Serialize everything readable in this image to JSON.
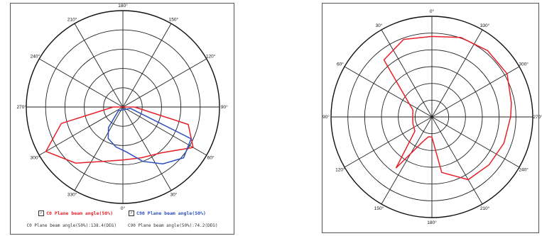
{
  "charts": {
    "left": {
      "angle_labels": [
        {
          "text": "180°",
          "angle": 0
        },
        {
          "text": "150°",
          "angle": 30
        },
        {
          "text": "120°",
          "angle": 60
        },
        {
          "text": "90°",
          "angle": 90
        },
        {
          "text": "60°",
          "angle": 120
        },
        {
          "text": "30°",
          "angle": 150
        },
        {
          "text": "0°",
          "angle": 180
        },
        {
          "text": "330°",
          "angle": 210
        },
        {
          "text": "300°",
          "angle": 240
        },
        {
          "text": "270°",
          "angle": 270
        },
        {
          "text": "240°",
          "angle": 300
        },
        {
          "text": "210°",
          "angle": 330
        }
      ],
      "legend": [
        {
          "label": "C0 Plane beam angle(50%)",
          "color": "#e8202a"
        },
        {
          "label": "C90 Plane beam angle(50%)",
          "color": "#2b4fc0"
        }
      ],
      "beam_text": [
        "C0 Plane beam angle(50%):138.4(DEG)",
        "C90 Plane beam angle(50%):74.2(DEG)"
      ]
    },
    "right": {
      "angle_labels": [
        {
          "text": "0°",
          "angle": 0
        },
        {
          "text": "330°",
          "angle": 30
        },
        {
          "text": "300°",
          "angle": 60
        },
        {
          "text": "270°",
          "angle": 90
        },
        {
          "text": "240°",
          "angle": 120
        },
        {
          "text": "210°",
          "angle": 150
        },
        {
          "text": "180°",
          "angle": 180
        },
        {
          "text": "150°",
          "angle": 210
        },
        {
          "text": "120°",
          "angle": 240
        },
        {
          "text": "90°",
          "angle": 270
        },
        {
          "text": "60°",
          "angle": 300
        },
        {
          "text": "30°",
          "angle": 330
        }
      ]
    }
  },
  "chart_data": [
    {
      "type": "polar-line",
      "rings": 5,
      "series": [
        {
          "name": "C0 Plane beam angle(50%)",
          "color": "#e8202a",
          "points": [
            {
              "angle": 90,
              "r": 0.12
            },
            {
              "angle": 105,
              "r": 0.7
            },
            {
              "angle": 120,
              "r": 0.84
            },
            {
              "angle": 140,
              "r": 0.62
            },
            {
              "angle": 160,
              "r": 0.56
            },
            {
              "angle": 180,
              "r": 0.55
            },
            {
              "angle": 200,
              "r": 0.6
            },
            {
              "angle": 220,
              "r": 0.76
            },
            {
              "angle": 240,
              "r": 0.92
            },
            {
              "angle": 255,
              "r": 0.66
            },
            {
              "angle": 270,
              "r": 0.1
            }
          ]
        },
        {
          "name": "C90 Plane beam angle(50%)",
          "color": "#2b4fc0",
          "points": [
            {
              "angle": 100,
              "r": 0.08
            },
            {
              "angle": 115,
              "r": 0.78
            },
            {
              "angle": 130,
              "r": 0.82
            },
            {
              "angle": 145,
              "r": 0.72
            },
            {
              "angle": 160,
              "r": 0.6
            },
            {
              "angle": 175,
              "r": 0.47
            },
            {
              "angle": 190,
              "r": 0.42
            },
            {
              "angle": 205,
              "r": 0.36
            },
            {
              "angle": 215,
              "r": 0.26
            },
            {
              "angle": 230,
              "r": 0.06
            }
          ]
        }
      ]
    },
    {
      "type": "polar-line",
      "rings": 6,
      "series": [
        {
          "color": "#e8202a",
          "points": [
            {
              "angle": 0,
              "r": 0.8
            },
            {
              "angle": 20,
              "r": 0.84
            },
            {
              "angle": 40,
              "r": 0.86
            },
            {
              "angle": 60,
              "r": 0.86
            },
            {
              "angle": 80,
              "r": 0.8
            },
            {
              "angle": 90,
              "r": 0.78
            },
            {
              "angle": 110,
              "r": 0.76
            },
            {
              "angle": 130,
              "r": 0.74
            },
            {
              "angle": 150,
              "r": 0.72
            },
            {
              "angle": 170,
              "r": 0.56
            },
            {
              "angle": 180,
              "r": 0.2
            },
            {
              "angle": 190,
              "r": 0.2
            },
            {
              "angle": 200,
              "r": 0.26
            },
            {
              "angle": 215,
              "r": 0.62
            },
            {
              "angle": 230,
              "r": 0.22
            },
            {
              "angle": 250,
              "r": 0.2
            },
            {
              "angle": 270,
              "r": 0.19
            },
            {
              "angle": 290,
              "r": 0.2
            },
            {
              "angle": 320,
              "r": 0.74
            },
            {
              "angle": 340,
              "r": 0.82
            },
            {
              "angle": 360,
              "r": 0.8
            }
          ]
        }
      ]
    }
  ]
}
